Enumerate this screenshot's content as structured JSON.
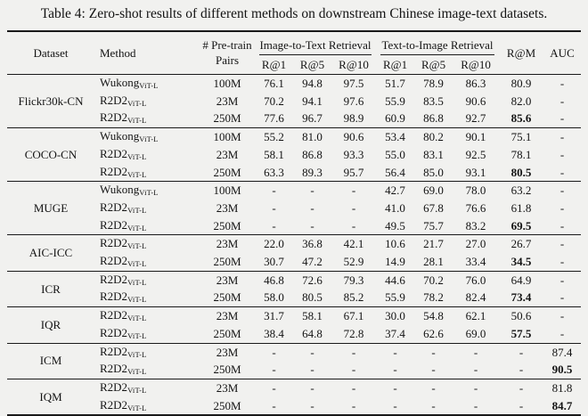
{
  "caption": "Table 4: Zero-shot results of different methods on downstream Chinese image-text datasets.",
  "colors": {
    "background": "#f1f1ef",
    "text": "#131313",
    "rule": "#1a1a1a"
  },
  "table": {
    "header": {
      "dataset": "Dataset",
      "method": "Method",
      "pretrain_line1": "# Pre-train",
      "pretrain_line2": "Pairs",
      "group_i2t": "Image-to-Text Retrieval",
      "group_t2i": "Text-to-Image Retrieval",
      "sub": [
        "R@1",
        "R@5",
        "R@10",
        "R@1",
        "R@5",
        "R@10"
      ],
      "ram": "R@M",
      "auc": "AUC"
    },
    "groups": [
      {
        "dataset": "Flickr30k-CN",
        "rows": [
          {
            "method": "Wukong",
            "method_sub": "ViT-L",
            "pairs": "100M",
            "values": [
              "76.1",
              "94.8",
              "97.5",
              "51.7",
              "78.9",
              "86.3"
            ],
            "ram": "80.9",
            "ram_bold": false,
            "auc": "-",
            "auc_bold": false
          },
          {
            "method": "R2D2",
            "method_sub": "ViT-L",
            "pairs": "23M",
            "values": [
              "70.2",
              "94.1",
              "97.6",
              "55.9",
              "83.5",
              "90.6"
            ],
            "ram": "82.0",
            "ram_bold": false,
            "auc": "-",
            "auc_bold": false
          },
          {
            "method": "R2D2",
            "method_sub": "ViT-L",
            "pairs": "250M",
            "values": [
              "77.6",
              "96.7",
              "98.9",
              "60.9",
              "86.8",
              "92.7"
            ],
            "ram": "85.6",
            "ram_bold": true,
            "auc": "-",
            "auc_bold": false
          }
        ]
      },
      {
        "dataset": "COCO-CN",
        "rows": [
          {
            "method": "Wukong",
            "method_sub": "ViT-L",
            "pairs": "100M",
            "values": [
              "55.2",
              "81.0",
              "90.6",
              "53.4",
              "80.2",
              "90.1"
            ],
            "ram": "75.1",
            "ram_bold": false,
            "auc": "-",
            "auc_bold": false
          },
          {
            "method": "R2D2",
            "method_sub": "ViT-L",
            "pairs": "23M",
            "values": [
              "58.1",
              "86.8",
              "93.3",
              "55.0",
              "83.1",
              "92.5"
            ],
            "ram": "78.1",
            "ram_bold": false,
            "auc": "-",
            "auc_bold": false
          },
          {
            "method": "R2D2",
            "method_sub": "ViT-L",
            "pairs": "250M",
            "values": [
              "63.3",
              "89.3",
              "95.7",
              "56.4",
              "85.0",
              "93.1"
            ],
            "ram": "80.5",
            "ram_bold": true,
            "auc": "-",
            "auc_bold": false
          }
        ]
      },
      {
        "dataset": "MUGE",
        "rows": [
          {
            "method": "Wukong",
            "method_sub": "ViT-L",
            "pairs": "100M",
            "values": [
              "-",
              "-",
              "-",
              "42.7",
              "69.0",
              "78.0"
            ],
            "ram": "63.2",
            "ram_bold": false,
            "auc": "-",
            "auc_bold": false
          },
          {
            "method": "R2D2",
            "method_sub": "ViT-L",
            "pairs": "23M",
            "values": [
              "-",
              "-",
              "-",
              "41.0",
              "67.8",
              "76.6"
            ],
            "ram": "61.8",
            "ram_bold": false,
            "auc": "-",
            "auc_bold": false
          },
          {
            "method": "R2D2",
            "method_sub": "ViT-L",
            "pairs": "250M",
            "values": [
              "-",
              "-",
              "-",
              "49.5",
              "75.7",
              "83.2"
            ],
            "ram": "69.5",
            "ram_bold": true,
            "auc": "-",
            "auc_bold": false
          }
        ]
      },
      {
        "dataset": "AIC-ICC",
        "rows": [
          {
            "method": "R2D2",
            "method_sub": "ViT-L",
            "pairs": "23M",
            "values": [
              "22.0",
              "36.8",
              "42.1",
              "10.6",
              "21.7",
              "27.0"
            ],
            "ram": "26.7",
            "ram_bold": false,
            "auc": "-",
            "auc_bold": false
          },
          {
            "method": "R2D2",
            "method_sub": "ViT-L",
            "pairs": "250M",
            "values": [
              "30.7",
              "47.2",
              "52.9",
              "14.9",
              "28.1",
              "33.4"
            ],
            "ram": "34.5",
            "ram_bold": true,
            "auc": "-",
            "auc_bold": false
          }
        ]
      },
      {
        "dataset": "ICR",
        "rows": [
          {
            "method": "R2D2",
            "method_sub": "ViT-L",
            "pairs": "23M",
            "values": [
              "46.8",
              "72.6",
              "79.3",
              "44.6",
              "70.2",
              "76.0"
            ],
            "ram": "64.9",
            "ram_bold": false,
            "auc": "-",
            "auc_bold": false
          },
          {
            "method": "R2D2",
            "method_sub": "ViT-L",
            "pairs": "250M",
            "values": [
              "58.0",
              "80.5",
              "85.2",
              "55.9",
              "78.2",
              "82.4"
            ],
            "ram": "73.4",
            "ram_bold": true,
            "auc": "-",
            "auc_bold": false
          }
        ]
      },
      {
        "dataset": "IQR",
        "rows": [
          {
            "method": "R2D2",
            "method_sub": "ViT-L",
            "pairs": "23M",
            "values": [
              "31.7",
              "58.1",
              "67.1",
              "30.0",
              "54.8",
              "62.1"
            ],
            "ram": "50.6",
            "ram_bold": false,
            "auc": "-",
            "auc_bold": false
          },
          {
            "method": "R2D2",
            "method_sub": "ViT-L",
            "pairs": "250M",
            "values": [
              "38.4",
              "64.8",
              "72.8",
              "37.4",
              "62.6",
              "69.0"
            ],
            "ram": "57.5",
            "ram_bold": true,
            "auc": "-",
            "auc_bold": false
          }
        ]
      },
      {
        "dataset": "ICM",
        "rows": [
          {
            "method": "R2D2",
            "method_sub": "ViT-L",
            "pairs": "23M",
            "values": [
              "-",
              "-",
              "-",
              "-",
              "-",
              "-"
            ],
            "ram": "-",
            "ram_bold": false,
            "auc": "87.4",
            "auc_bold": false
          },
          {
            "method": "R2D2",
            "method_sub": "ViT-L",
            "pairs": "250M",
            "values": [
              "-",
              "-",
              "-",
              "-",
              "-",
              "-"
            ],
            "ram": "-",
            "ram_bold": false,
            "auc": "90.5",
            "auc_bold": true
          }
        ]
      },
      {
        "dataset": "IQM",
        "rows": [
          {
            "method": "R2D2",
            "method_sub": "ViT-L",
            "pairs": "23M",
            "values": [
              "-",
              "-",
              "-",
              "-",
              "-",
              "-"
            ],
            "ram": "-",
            "ram_bold": false,
            "auc": "81.8",
            "auc_bold": false
          },
          {
            "method": "R2D2",
            "method_sub": "ViT-L",
            "pairs": "250M",
            "values": [
              "-",
              "-",
              "-",
              "-",
              "-",
              "-"
            ],
            "ram": "-",
            "ram_bold": false,
            "auc": "84.7",
            "auc_bold": true
          }
        ]
      }
    ]
  }
}
